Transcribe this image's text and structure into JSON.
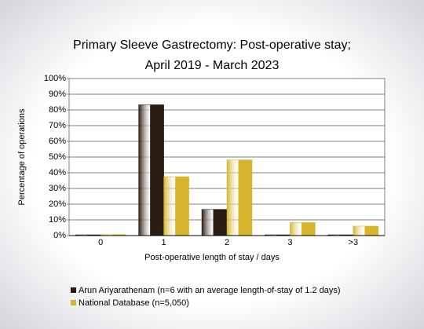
{
  "chart_data": {
    "type": "bar",
    "title": [
      "Primary Sleeve Gastrectomy: Post-operative stay;",
      "April 2019 - March 2023"
    ],
    "x_label": "Post-operative length of stay / days",
    "y_label": "Percentage of operations",
    "categories": [
      "0",
      "1",
      "2",
      "3",
      ">3"
    ],
    "series": [
      {
        "name": "Arun Ariyarathenam (n=6 with an average length-of-stay of 1.2 days)",
        "color": "#2b1d12",
        "values": [
          0,
          83.3,
          16.7,
          0,
          0
        ]
      },
      {
        "name": "National Database (n=5,050)",
        "color": "#d6b52c",
        "values": [
          0.7,
          37.5,
          48.2,
          8.3,
          6
        ]
      }
    ],
    "ylim": [
      0,
      100
    ],
    "yticks": [
      {
        "value": 0,
        "label": "0%"
      },
      {
        "value": 10,
        "label": "10%"
      },
      {
        "value": 20,
        "label": "20%"
      },
      {
        "value": 30,
        "label": "30%"
      },
      {
        "value": 40,
        "label": "40%"
      },
      {
        "value": 50,
        "label": "50%"
      },
      {
        "value": 60,
        "label": "60%"
      },
      {
        "value": 70,
        "label": "70%"
      },
      {
        "value": 80,
        "label": "80%"
      },
      {
        "value": 90,
        "label": "90%"
      },
      {
        "value": 100,
        "label": "100%"
      }
    ],
    "grid": true
  }
}
